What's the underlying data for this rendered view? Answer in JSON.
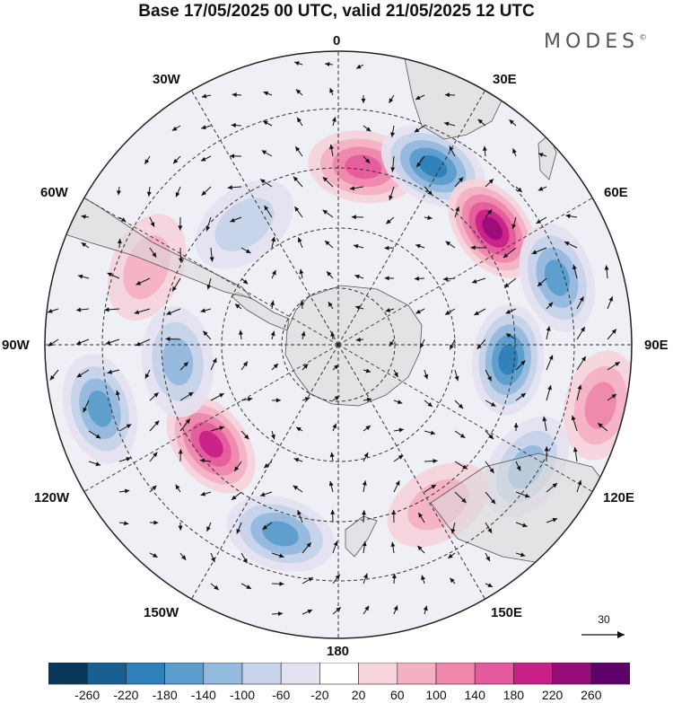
{
  "title": "Base 17/05/2025 00 UTC, valid 21/05/2025 12 UTC",
  "brand": "MODES",
  "brand_mark": "©",
  "lon_labels": {
    "l0": "0",
    "l30e": "30E",
    "l60e": "60E",
    "l90e": "90E",
    "l120e": "120E",
    "l150e": "150E",
    "l180": "180",
    "l150w": "150W",
    "l120w": "120W",
    "l90w": "90W",
    "l60w": "60W",
    "l30w": "30W"
  },
  "reference_vector": "30",
  "colorbar": {
    "colors": [
      "#08375a",
      "#1a5f91",
      "#2f7fb8",
      "#5a9ccc",
      "#93b9dc",
      "#c6d3e8",
      "#e4e2f0",
      "#ffffff",
      "#f6d4db",
      "#f3b1c2",
      "#ef86ab",
      "#e45a9c",
      "#c92088",
      "#980c7a",
      "#5e0168"
    ],
    "ticks": [
      "-260",
      "-220",
      "-180",
      "-140",
      "-100",
      "-60",
      "-20",
      "20",
      "60",
      "100",
      "140",
      "180",
      "220",
      "260"
    ]
  },
  "anomalies": [
    {
      "name": "pos-0",
      "lon": 8,
      "r": 200,
      "value": 150
    },
    {
      "name": "neg-25e",
      "lon": 28,
      "r": 225,
      "value": -190
    },
    {
      "name": "pos-50e",
      "lon": 53,
      "r": 215,
      "value": 230
    },
    {
      "name": "neg-70e",
      "lon": 73,
      "r": 255,
      "value": -160
    },
    {
      "name": "neg-95e",
      "lon": 95,
      "r": 190,
      "value": -180
    },
    {
      "name": "pos-105e",
      "lon": 103,
      "r": 300,
      "value": 110
    },
    {
      "name": "neg-120e",
      "lon": 123,
      "r": 250,
      "value": -100
    },
    {
      "name": "pos-145e",
      "lon": 148,
      "r": 210,
      "value": 60
    },
    {
      "name": "neg-165w",
      "lon": 197,
      "r": 220,
      "value": -170
    },
    {
      "name": "pos-135w",
      "lon": 232,
      "r": 180,
      "value": 190
    },
    {
      "name": "neg-100w",
      "lon": 255,
      "r": 275,
      "value": -150
    },
    {
      "name": "neg-95w",
      "lon": 264,
      "r": 180,
      "value": -120
    },
    {
      "name": "pos-75w",
      "lon": 292,
      "r": 230,
      "value": 70
    },
    {
      "name": "neg-45w",
      "lon": 322,
      "r": 170,
      "value": -70
    }
  ]
}
